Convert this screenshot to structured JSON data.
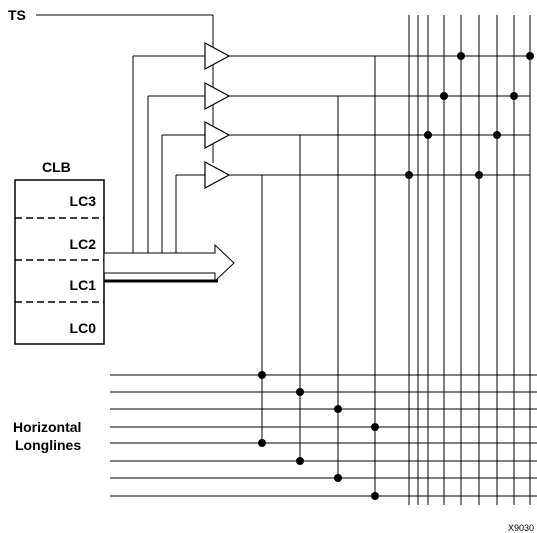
{
  "diagram": {
    "ts_label": "TS",
    "clb_label": "CLB",
    "lc_labels": [
      "LC3",
      "LC2",
      "LC1",
      "LC0"
    ],
    "longlines_label_line1": "Horizontal",
    "longlines_label_line2": "Longlines",
    "reference_code": "X9030"
  },
  "colors": {
    "line": "#000000",
    "background": "#ffffff"
  }
}
